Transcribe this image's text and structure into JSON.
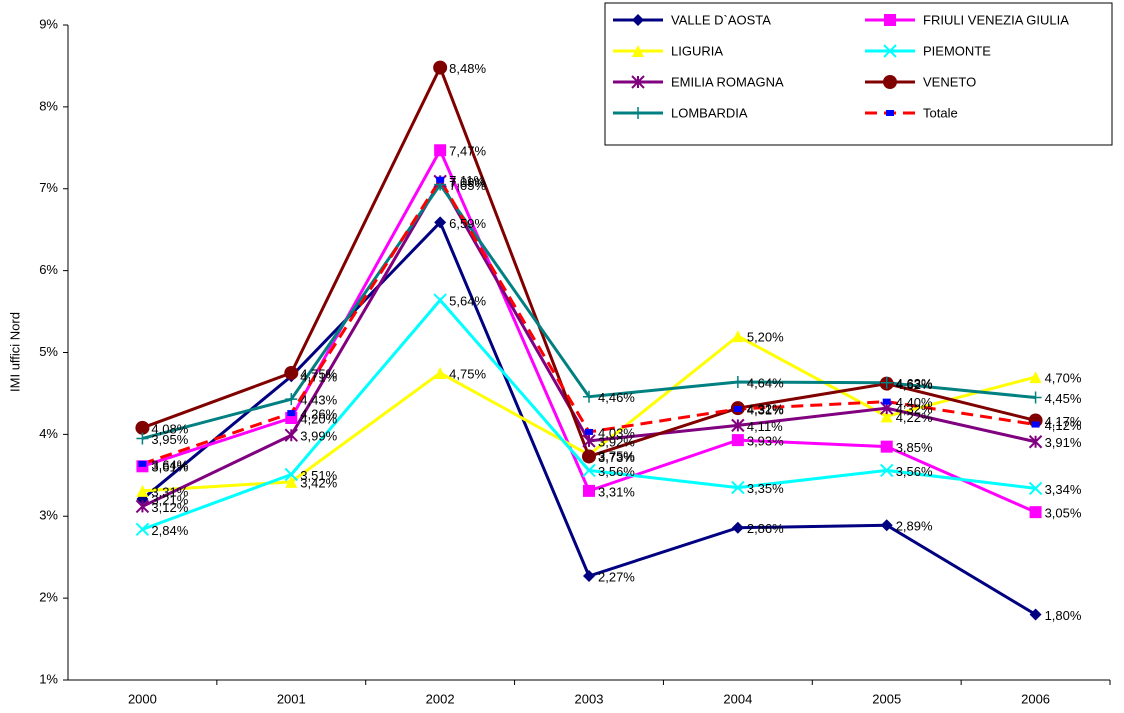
{
  "chart_data": {
    "type": "line",
    "y_label": "IMI uffici Nord",
    "categories": [
      "2000",
      "2001",
      "2002",
      "2003",
      "2004",
      "2005",
      "2006"
    ],
    "ylim": [
      1,
      9
    ],
    "yticks": [
      {
        "value": 1,
        "label": "1%"
      },
      {
        "value": 2,
        "label": "2%"
      },
      {
        "value": 3,
        "label": "3%"
      },
      {
        "value": 4,
        "label": "4%"
      },
      {
        "value": 5,
        "label": "5%"
      },
      {
        "value": 6,
        "label": "6%"
      },
      {
        "value": 7,
        "label": "7%"
      },
      {
        "value": 8,
        "label": "8%"
      },
      {
        "value": 9,
        "label": "9%"
      }
    ],
    "grid": false,
    "legend": "top-right",
    "series": [
      {
        "name": "VALLE D`AOSTA",
        "color": "#000080",
        "marker": "diamond",
        "values": [
          3.21,
          4.71,
          6.59,
          2.27,
          2.86,
          2.89,
          1.8
        ],
        "value_labels": [
          "3,21%",
          "4,71%",
          "6,59%",
          "2,27%",
          "2,86%",
          "2,89%",
          "1,80%"
        ]
      },
      {
        "name": "FRIULI VENEZIA GIULIA",
        "color": "#ff00ff",
        "marker": "square",
        "values": [
          3.61,
          4.2,
          7.47,
          3.31,
          3.93,
          3.85,
          3.05
        ],
        "value_labels": [
          "3,61%",
          "4,20%",
          "7,47%",
          "3,31%",
          "3,93%",
          "3,85%",
          "3,05%"
        ]
      },
      {
        "name": "LIGURIA",
        "color": "#ffff00",
        "marker": "triangle",
        "values": [
          3.31,
          3.42,
          4.75,
          3.75,
          5.2,
          4.22,
          4.7
        ],
        "value_labels": [
          "3,31%",
          "3,42%",
          "4,75%",
          "3,75%",
          "5,20%",
          "4,22%",
          "4,70%"
        ]
      },
      {
        "name": "PIEMONTE",
        "color": "#00ffff",
        "marker": "x",
        "values": [
          2.84,
          3.51,
          5.64,
          3.56,
          3.35,
          3.56,
          3.34
        ],
        "value_labels": [
          "2,84%",
          "3,51%",
          "5,64%",
          "3,56%",
          "3,35%",
          "3,56%",
          "3,34%"
        ]
      },
      {
        "name": "EMILIA ROMAGNA",
        "color": "#800080",
        "marker": "star",
        "values": [
          3.12,
          3.99,
          7.09,
          3.92,
          4.11,
          4.32,
          3.91
        ],
        "value_labels": [
          "3,12%",
          "3,99%",
          "7,09%",
          "3,92%",
          "4,11%",
          "4,32%",
          "3,91%"
        ]
      },
      {
        "name": "VENETO",
        "color": "#800000",
        "marker": "circle",
        "values": [
          4.08,
          4.75,
          8.48,
          3.73,
          4.32,
          4.62,
          4.17
        ],
        "value_labels": [
          "4,08%",
          "4,75%",
          "8,48%",
          "3,73%",
          "4,32%",
          "4,62%",
          "4,17%"
        ]
      },
      {
        "name": "LOMBARDIA",
        "color": "#008080",
        "marker": "plus",
        "values": [
          3.95,
          4.43,
          7.05,
          4.46,
          4.64,
          4.63,
          4.45
        ],
        "value_labels": [
          "3,95%",
          "4,43%",
          "7,05%",
          "4,46%",
          "4,64%",
          "4,63%",
          "4,45%"
        ]
      },
      {
        "name": "Totale",
        "color": "#ff0000",
        "marker": "dash",
        "dashed": true,
        "values": [
          3.64,
          4.26,
          7.11,
          4.03,
          4.31,
          4.4,
          4.12
        ],
        "value_labels": [
          "3,64%",
          "4,26%",
          "7,11%",
          "4,03%",
          "4,31%",
          "4,40%",
          "4,12%"
        ]
      }
    ]
  }
}
